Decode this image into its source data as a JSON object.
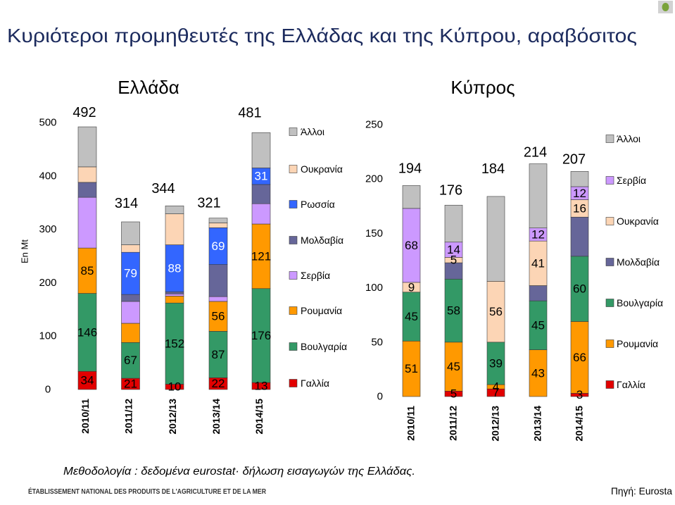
{
  "title": "Κυριότεροι προμηθευτές της Ελλάδας και της Κύπρου, αραβόσιτος",
  "methodology": "Μεθοδολογία : δεδομένα eurostat· δήλωση εισαγωγών της Ελλάδας.",
  "org_name": "ÉTABLISSEMENT NATIONAL DES PRODUITS DE L'AGRICULTURE ET DE LA MER",
  "source": "Πηγή: Eurosta",
  "icons": {
    "corner": "logo-icon"
  },
  "chart_data": [
    {
      "type": "bar",
      "stacked": true,
      "title": "Ελλάδα",
      "ylabel": "En Mt",
      "categories": [
        "2010/11",
        "2011/12",
        "2012/13",
        "2013/14",
        "2014/15"
      ],
      "ylim": [
        0,
        500
      ],
      "yticks": [
        0,
        100,
        200,
        300,
        400,
        500
      ],
      "grid": false,
      "legend": "right",
      "totals": [
        492,
        314,
        344,
        321,
        481
      ],
      "series": [
        {
          "name": "Γαλλία",
          "color": "#e20000",
          "values": [
            34,
            21,
            10,
            22,
            13
          ],
          "labeled": [
            true,
            true,
            true,
            true,
            true
          ]
        },
        {
          "name": "Βουλγαρία",
          "color": "#339966",
          "values": [
            146,
            67,
            152,
            87,
            176
          ],
          "labeled": [
            true,
            true,
            true,
            true,
            true
          ]
        },
        {
          "name": "Ρουμανία",
          "color": "#ff9900",
          "values": [
            85,
            36,
            13,
            56,
            121
          ],
          "labeled": [
            true,
            false,
            false,
            true,
            true
          ]
        },
        {
          "name": "Σερβία",
          "color": "#cc99ff",
          "values": [
            95,
            41,
            4,
            9,
            38
          ],
          "labeled": [
            false,
            false,
            false,
            false,
            false
          ]
        },
        {
          "name": "Μολδαβία",
          "color": "#666699",
          "values": [
            28,
            13,
            4,
            60,
            36
          ],
          "labeled": [
            false,
            false,
            false,
            false,
            false
          ]
        },
        {
          "name": "Ρωσσία",
          "color": "#3366ff",
          "label_color": "#ffffff",
          "values": [
            0,
            79,
            88,
            69,
            31
          ],
          "labeled": [
            false,
            true,
            true,
            true,
            true
          ]
        },
        {
          "name": "Ουκρανία",
          "color": "#fcd5b5",
          "values": [
            29,
            14,
            58,
            9,
            0
          ],
          "labeled": [
            false,
            false,
            false,
            false,
            false
          ]
        },
        {
          "name": "Άλλοι",
          "color": "#c0c0c0",
          "values": [
            75,
            43,
            15,
            9,
            66
          ],
          "labeled": [
            false,
            false,
            false,
            false,
            false
          ]
        }
      ]
    },
    {
      "type": "bar",
      "stacked": true,
      "title": "Κύπρος",
      "categories": [
        "2010/11",
        "2011/12",
        "2012/13",
        "2013/14",
        "2014/15"
      ],
      "ylim": [
        0,
        250
      ],
      "yticks": [
        0,
        50,
        100,
        150,
        200,
        250
      ],
      "grid": false,
      "legend": "right",
      "totals": [
        194,
        176,
        184,
        214,
        207
      ],
      "series": [
        {
          "name": "Γαλλία",
          "color": "#e20000",
          "values": [
            0,
            5,
            7,
            0,
            3
          ],
          "labeled": [
            false,
            true,
            true,
            false,
            true
          ]
        },
        {
          "name": "Ρουμανία",
          "color": "#ff9900",
          "values": [
            51,
            45,
            4,
            43,
            66
          ],
          "labeled": [
            true,
            true,
            true,
            true,
            true
          ]
        },
        {
          "name": "Βουλγαρία",
          "color": "#339966",
          "values": [
            45,
            58,
            39,
            45,
            60
          ],
          "labeled": [
            true,
            true,
            true,
            true,
            true
          ]
        },
        {
          "name": "Μολδαβία",
          "color": "#666699",
          "values": [
            0,
            15,
            0,
            14,
            36
          ],
          "labeled": [
            false,
            false,
            false,
            false,
            false
          ]
        },
        {
          "name": "Ουκρανία",
          "color": "#fcd5b5",
          "values": [
            9,
            5,
            56,
            41,
            16
          ],
          "labeled": [
            true,
            true,
            true,
            true,
            true
          ]
        },
        {
          "name": "Σερβία",
          "color": "#cc99ff",
          "values": [
            68,
            14,
            0,
            12,
            12
          ],
          "labeled": [
            true,
            true,
            false,
            true,
            true
          ]
        },
        {
          "name": "Άλλοι",
          "color": "#c0c0c0",
          "values": [
            21,
            34,
            78,
            59,
            14
          ],
          "labeled": [
            false,
            false,
            false,
            false,
            false
          ]
        }
      ]
    }
  ]
}
